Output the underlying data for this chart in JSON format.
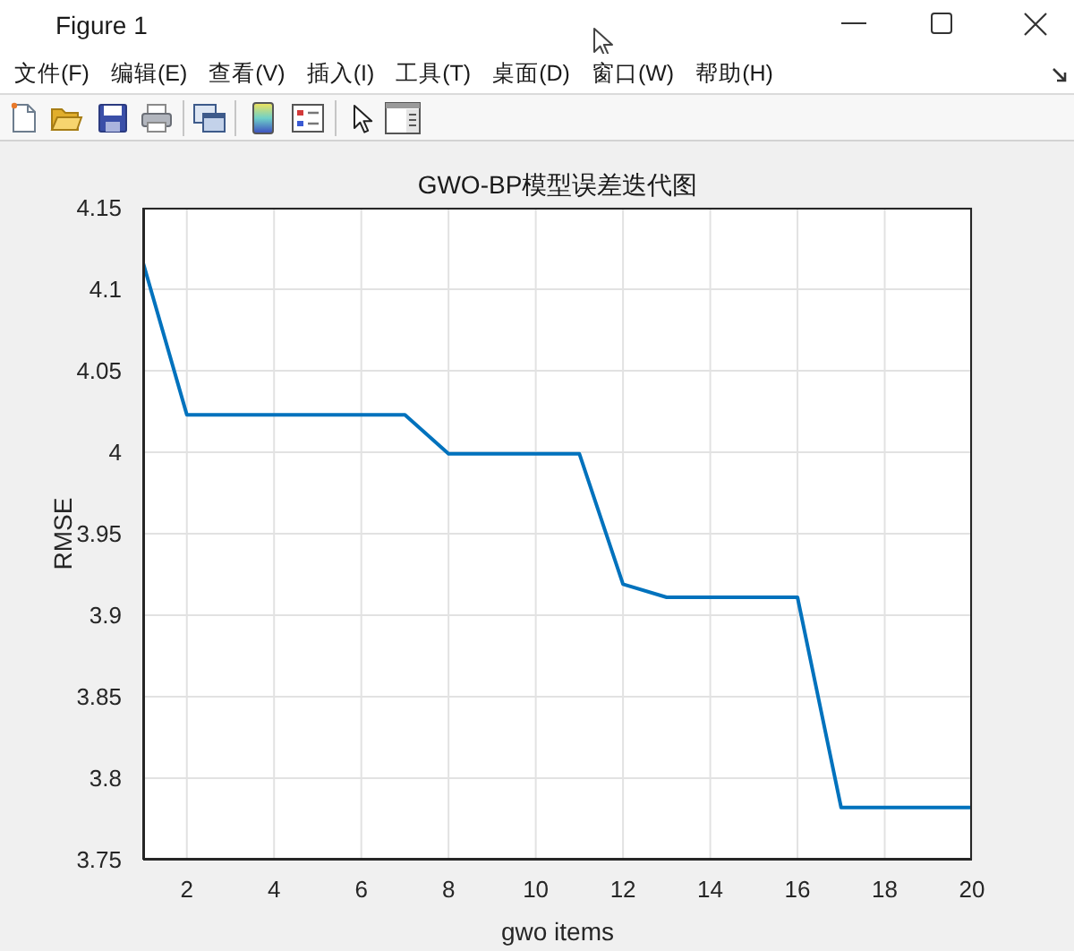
{
  "chart_data": {
    "type": "line",
    "title": "GWO-BP模型误差迭代图",
    "xlabel": "gwo items",
    "ylabel": "RMSE",
    "annotations": [
      "Figure 1",
      "文件(F)",
      "编辑(E)",
      "查看(V)",
      "插入(I)",
      "工具(T)",
      "桌面(D)",
      "窗口(W)",
      "帮助(H)"
    ],
    "x": [
      1,
      2,
      3,
      4,
      5,
      6,
      7,
      8,
      9,
      10,
      11,
      12,
      13,
      14,
      15,
      16,
      17,
      18,
      19,
      20
    ],
    "values": [
      4.116,
      4.023,
      4.023,
      4.023,
      4.023,
      4.023,
      4.023,
      3.999,
      3.999,
      3.999,
      3.999,
      3.919,
      3.911,
      3.911,
      3.911,
      3.911,
      3.782,
      3.782,
      3.782,
      3.782
    ],
    "color": "#0072bd",
    "line_style": "solid",
    "xlim": [
      1,
      20
    ],
    "xticks": [
      2,
      4,
      6,
      8,
      10,
      12,
      14,
      16,
      18,
      20
    ],
    "ylim": [
      3.75,
      4.15
    ],
    "yticks": [
      3.75,
      3.8,
      3.85,
      3.9,
      3.95,
      4,
      4.05,
      4.1,
      4.15
    ],
    "grid": true
  }
}
